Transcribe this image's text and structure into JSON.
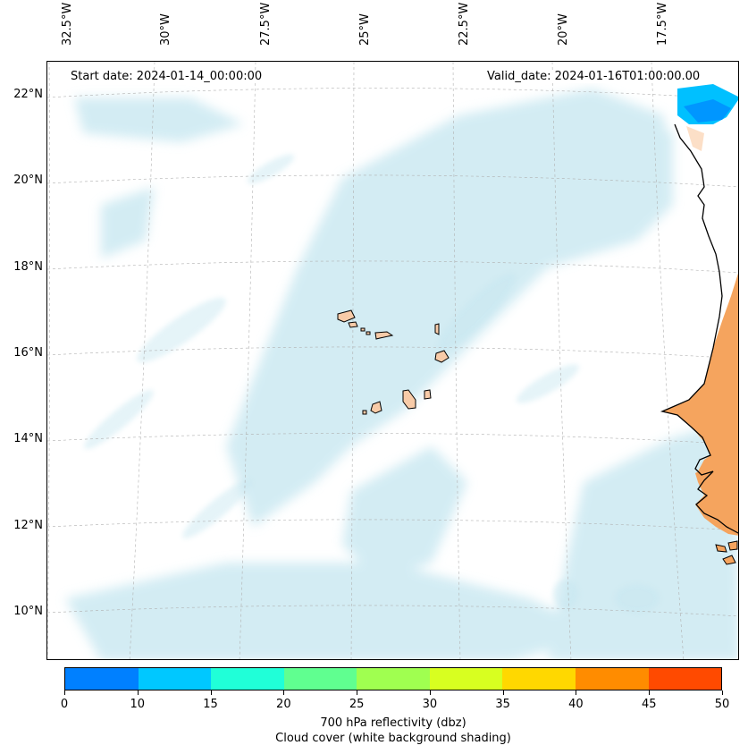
{
  "header": {
    "start_date": "Start date: 2024-01-14_00:00:00",
    "valid_date": "Valid_date: 2024-01-16T01:00:00.00"
  },
  "axes": {
    "lon_labels": [
      "32.5°W",
      "30°W",
      "27.5°W",
      "25°W",
      "22.5°W",
      "20°W",
      "17.5°W"
    ],
    "lat_labels": [
      "22°N",
      "20°N",
      "18°N",
      "16°N",
      "14°N",
      "12°N",
      "10°N"
    ]
  },
  "colorbar": {
    "ticks": [
      "0",
      "10",
      "15",
      "20",
      "25",
      "30",
      "35",
      "40",
      "45",
      "50"
    ],
    "colors": [
      "#0080ff",
      "#00c8ff",
      "#20ffd8",
      "#60ff90",
      "#a0ff50",
      "#d8ff20",
      "#ffd800",
      "#ff8c00",
      "#ff4a00"
    ],
    "label_line1": "700 hPa reflectivity (dbz)",
    "label_line2": "Cloud cover (white background shading)"
  },
  "map": {
    "ocean_shade": "#c5e6f0",
    "land_color": "#f5a45e",
    "island_color": "#f8cba8",
    "coastline_color": "#000000",
    "grid_color": "#b0b0b0",
    "echo_color": "#0096ff",
    "echo_light": "#00c0ff"
  }
}
